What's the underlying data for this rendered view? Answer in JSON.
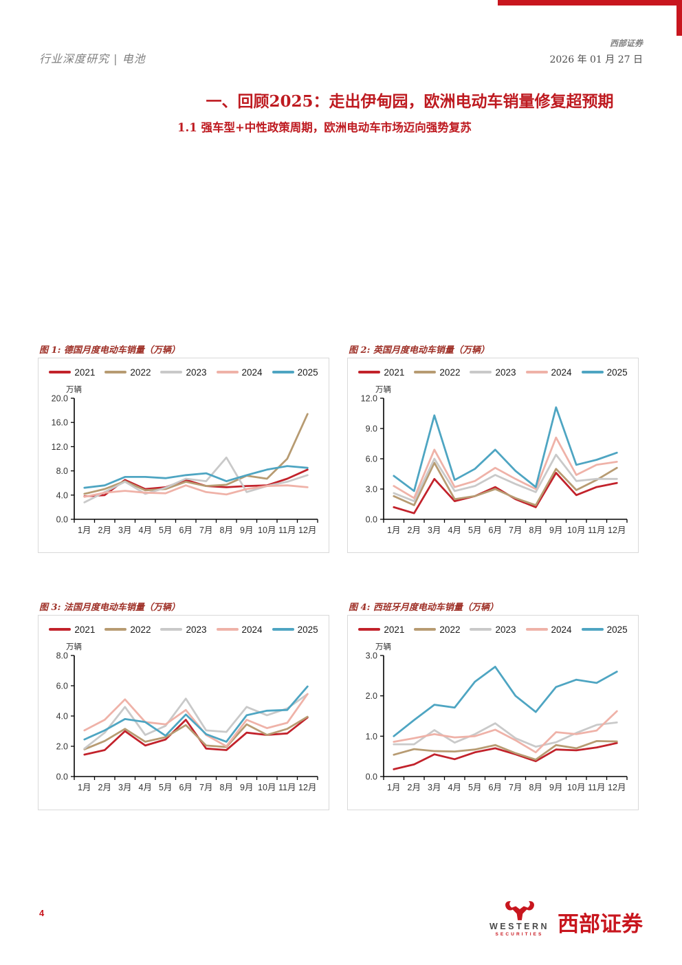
{
  "page": {
    "header_left": "行业深度研究 | 电池",
    "header_right_brand": "西部证券",
    "header_right_date": "2026 年 01 月 27 日",
    "section_title": "一、回顾2025：走出伊甸园，欧洲电动车销量修复超预期",
    "subsection_title": "1.1 强车型+中性政策周期，欧洲电动车市场迈向强势复苏",
    "page_number": "4",
    "accent_red": "#C8161E",
    "title_red": "#BE1A20",
    "footer_logo": {
      "en_name": "WESTERN",
      "en_sub": "SECURITIES",
      "cn_name": "西部证券"
    }
  },
  "chart_data": [
    {
      "id": "fig1",
      "type": "line",
      "title": "图 1: 德国月度电动车销量（万辆）",
      "unit_label": "万辆",
      "legend_position": "top",
      "grid": false,
      "categories": [
        "1月",
        "2月",
        "3月",
        "4月",
        "5月",
        "6月",
        "7月",
        "8月",
        "9月",
        "10月",
        "11月",
        "12月"
      ],
      "ylim": [
        0,
        20
      ],
      "yticks": [
        0,
        4,
        8,
        12,
        16,
        20
      ],
      "ytick_labels": [
        "0.0",
        "4.0",
        "8.0",
        "12.0",
        "16.0",
        "20.0"
      ],
      "series": [
        {
          "name": "2021",
          "color": "#C2222B",
          "values": [
            3.8,
            4.0,
            6.5,
            5.0,
            5.3,
            6.5,
            5.5,
            5.3,
            5.5,
            5.6,
            6.7,
            8.2
          ]
        },
        {
          "name": "2022",
          "color": "#B79B72",
          "values": [
            4.2,
            5.0,
            6.3,
            4.8,
            5.0,
            6.2,
            5.5,
            5.7,
            7.2,
            6.7,
            10.0,
            17.4
          ]
        },
        {
          "name": "2023",
          "color": "#C9C9C9",
          "values": [
            2.8,
            4.5,
            6.2,
            4.2,
            5.2,
            6.7,
            6.3,
            10.2,
            4.5,
            5.5,
            6.2,
            7.3
          ]
        },
        {
          "name": "2024",
          "color": "#EFB2A8",
          "values": [
            3.7,
            4.4,
            4.7,
            4.4,
            4.3,
            5.6,
            4.5,
            4.1,
            5.0,
            5.5,
            5.6,
            5.3
          ]
        },
        {
          "name": "2025",
          "color": "#4EA5C2",
          "values": [
            5.2,
            5.6,
            7.0,
            7.0,
            6.8,
            7.3,
            7.6,
            6.3,
            7.3,
            8.2,
            8.8,
            8.5
          ]
        }
      ]
    },
    {
      "id": "fig2",
      "type": "line",
      "title": "图 2: 英国月度电动车销量（万辆）",
      "unit_label": "万辆",
      "legend_position": "top",
      "grid": false,
      "categories": [
        "1月",
        "2月",
        "3月",
        "4月",
        "5月",
        "6月",
        "7月",
        "8月",
        "9月",
        "10月",
        "11月",
        "12月"
      ],
      "ylim": [
        0,
        12
      ],
      "yticks": [
        0,
        3,
        6,
        9,
        12
      ],
      "ytick_labels": [
        "0.0",
        "3.0",
        "6.0",
        "9.0",
        "12.0"
      ],
      "series": [
        {
          "name": "2021",
          "color": "#C2222B",
          "values": [
            1.2,
            0.6,
            4.0,
            1.8,
            2.3,
            3.2,
            2.0,
            1.2,
            4.6,
            2.4,
            3.2,
            3.6
          ]
        },
        {
          "name": "2022",
          "color": "#B79B72",
          "values": [
            2.3,
            1.4,
            5.6,
            2.0,
            2.3,
            3.0,
            2.1,
            1.4,
            5.0,
            2.9,
            3.9,
            5.1
          ]
        },
        {
          "name": "2023",
          "color": "#C9C9C9",
          "values": [
            2.6,
            1.8,
            6.0,
            2.8,
            3.3,
            4.4,
            3.5,
            2.7,
            6.4,
            3.8,
            4.0,
            4.0
          ]
        },
        {
          "name": "2024",
          "color": "#EFB2A8",
          "values": [
            3.3,
            2.1,
            6.9,
            3.2,
            3.8,
            5.1,
            4.0,
            3.0,
            8.1,
            4.4,
            5.4,
            5.7
          ]
        },
        {
          "name": "2025",
          "color": "#4EA5C2",
          "values": [
            4.3,
            2.8,
            10.3,
            3.9,
            5.0,
            6.9,
            4.8,
            3.2,
            11.1,
            5.4,
            5.9,
            6.6
          ]
        }
      ]
    },
    {
      "id": "fig3",
      "type": "line",
      "title": "图 3: 法国月度电动车销量（万辆）",
      "unit_label": "万辆",
      "legend_position": "top",
      "grid": false,
      "categories": [
        "1月",
        "2月",
        "3月",
        "4月",
        "5月",
        "6月",
        "7月",
        "8月",
        "9月",
        "10月",
        "11月",
        "12月"
      ],
      "ylim": [
        0,
        8
      ],
      "yticks": [
        0,
        2,
        4,
        6,
        8
      ],
      "ytick_labels": [
        "0.0",
        "2.0",
        "4.0",
        "6.0",
        "8.0"
      ],
      "series": [
        {
          "name": "2021",
          "color": "#C2222B",
          "values": [
            1.45,
            1.75,
            3.0,
            2.05,
            2.45,
            3.75,
            1.85,
            1.75,
            2.9,
            2.75,
            2.85,
            3.9
          ]
        },
        {
          "name": "2022",
          "color": "#B79B72",
          "values": [
            1.8,
            2.35,
            3.15,
            2.3,
            2.6,
            3.4,
            2.05,
            1.95,
            3.45,
            2.75,
            3.15,
            3.95
          ]
        },
        {
          "name": "2023",
          "color": "#C9C9C9",
          "values": [
            1.85,
            2.9,
            4.6,
            2.75,
            3.35,
            5.15,
            3.05,
            2.95,
            4.6,
            4.05,
            4.5,
            5.45
          ]
        },
        {
          "name": "2024",
          "color": "#EFB2A8",
          "values": [
            3.05,
            3.75,
            5.1,
            3.6,
            3.45,
            4.4,
            2.75,
            2.0,
            3.75,
            3.2,
            3.55,
            5.45
          ]
        },
        {
          "name": "2025",
          "color": "#4EA5C2",
          "values": [
            2.45,
            3.05,
            3.8,
            3.6,
            2.7,
            4.1,
            2.8,
            2.3,
            4.05,
            4.35,
            4.4,
            5.95
          ]
        }
      ]
    },
    {
      "id": "fig4",
      "type": "line",
      "title": "图 4: 西班牙月度电动车销量（万辆）",
      "unit_label": "万辆",
      "legend_position": "top",
      "grid": false,
      "categories": [
        "1月",
        "2月",
        "3月",
        "4月",
        "5月",
        "6月",
        "7月",
        "8月",
        "9月",
        "10月",
        "11月",
        "12月"
      ],
      "ylim": [
        0,
        3
      ],
      "yticks": [
        0,
        1,
        2,
        3
      ],
      "ytick_labels": [
        "0.0",
        "1.0",
        "2.0",
        "3.0"
      ],
      "series": [
        {
          "name": "2021",
          "color": "#C2222B",
          "values": [
            0.18,
            0.3,
            0.55,
            0.43,
            0.6,
            0.7,
            0.55,
            0.38,
            0.67,
            0.65,
            0.72,
            0.83
          ]
        },
        {
          "name": "2022",
          "color": "#B79B72",
          "values": [
            0.54,
            0.68,
            0.63,
            0.62,
            0.67,
            0.78,
            0.58,
            0.42,
            0.78,
            0.7,
            0.88,
            0.87
          ]
        },
        {
          "name": "2023",
          "color": "#C9C9C9",
          "values": [
            0.8,
            0.8,
            1.15,
            0.84,
            1.05,
            1.32,
            0.95,
            0.74,
            0.85,
            1.08,
            1.28,
            1.34
          ]
        },
        {
          "name": "2024",
          "color": "#EFB2A8",
          "values": [
            0.86,
            0.95,
            1.05,
            0.97,
            1.0,
            1.16,
            0.9,
            0.6,
            1.1,
            1.05,
            1.14,
            1.62
          ]
        },
        {
          "name": "2025",
          "color": "#4EA5C2",
          "values": [
            1.0,
            1.4,
            1.78,
            1.71,
            2.35,
            2.72,
            2.0,
            1.6,
            2.22,
            2.4,
            2.32,
            2.6
          ]
        }
      ]
    }
  ]
}
